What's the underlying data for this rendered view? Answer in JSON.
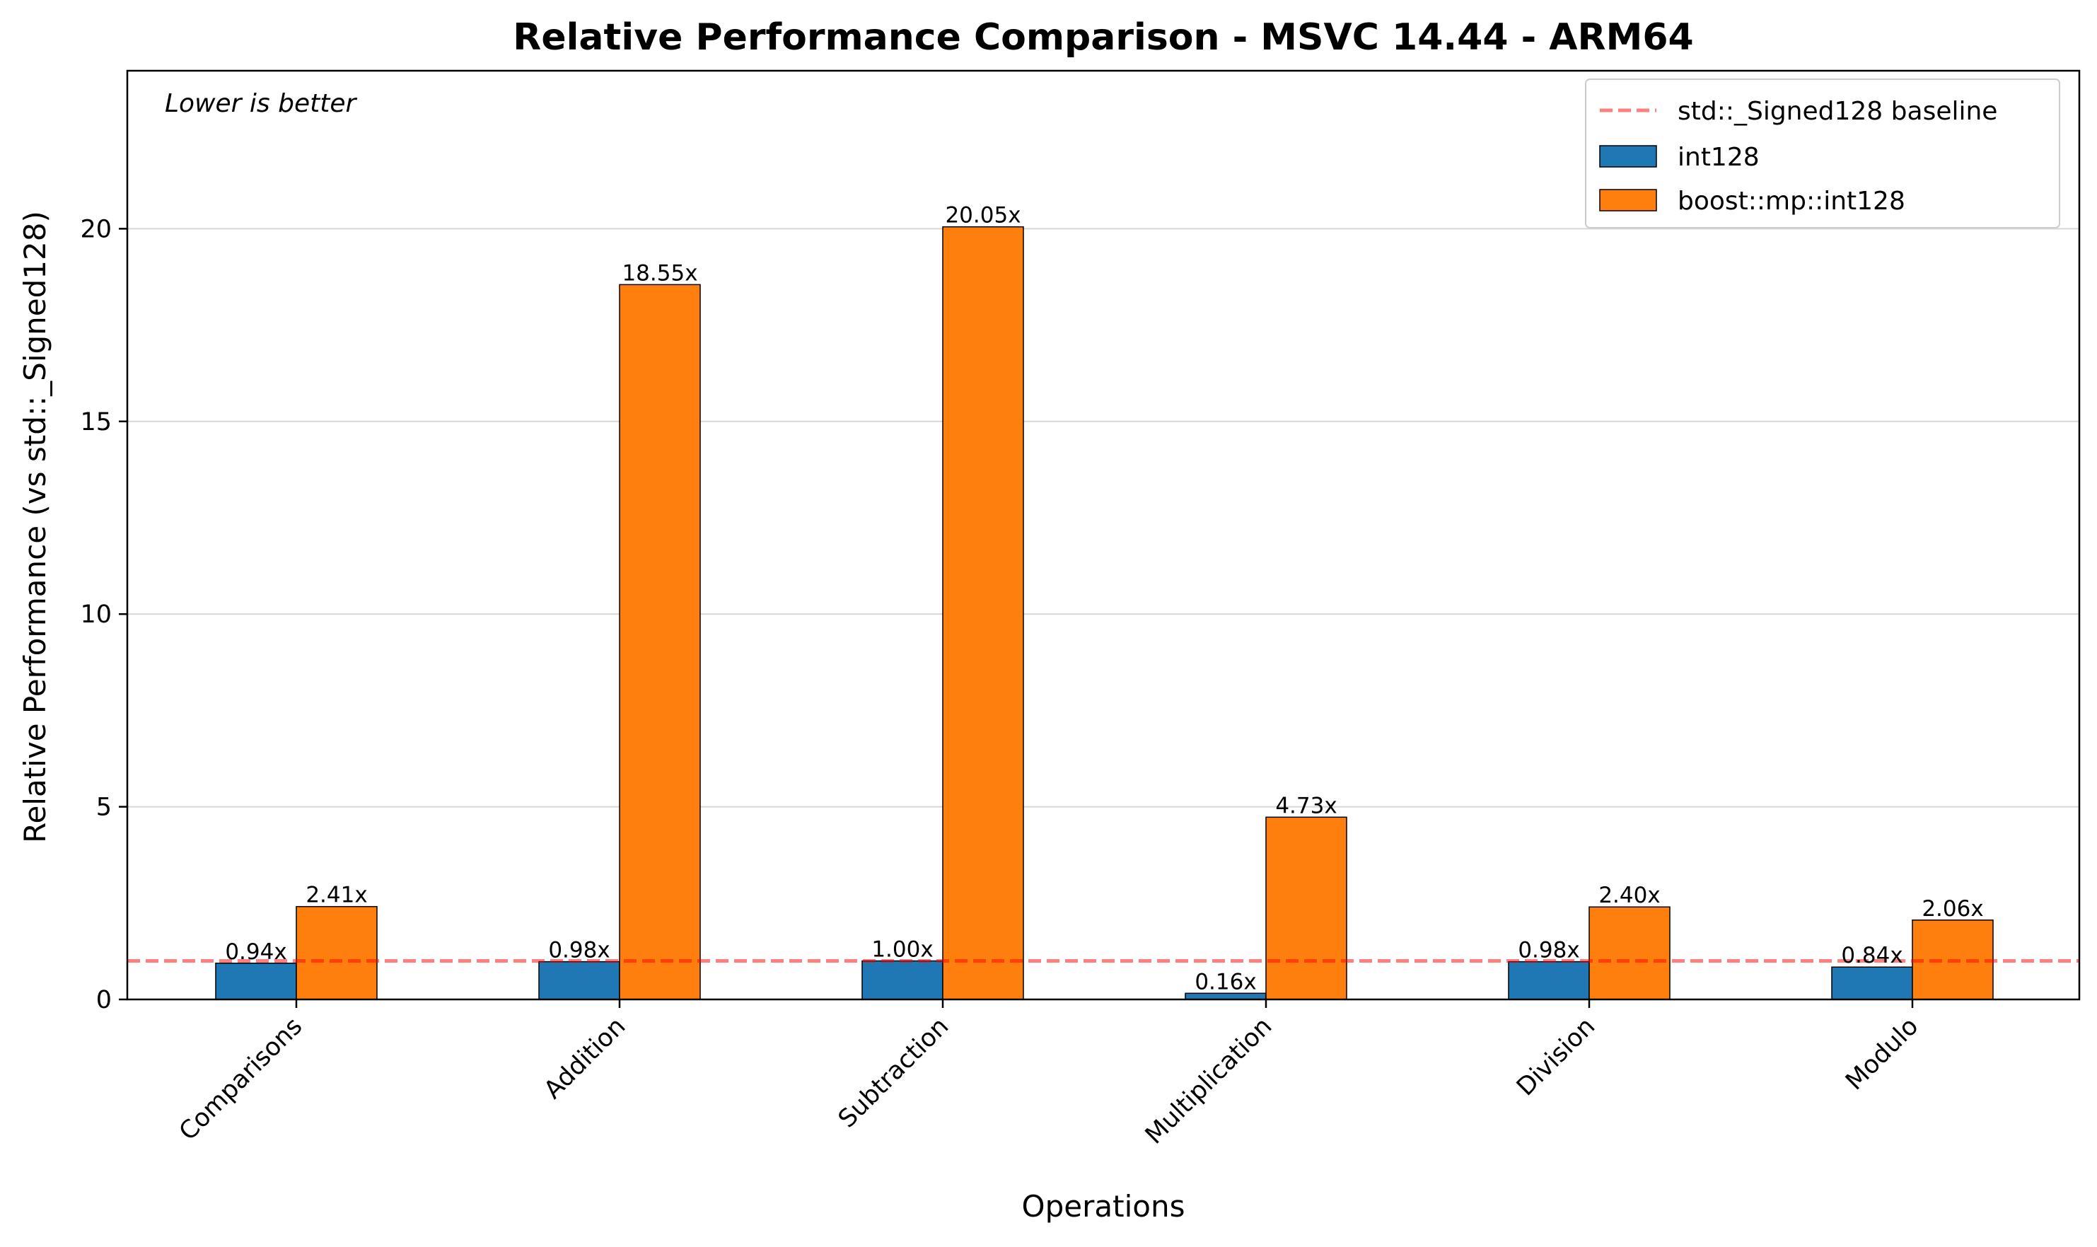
{
  "chart_data": {
    "type": "bar",
    "title": "Relative Performance Comparison - MSVC 14.44 - ARM64",
    "xlabel": "Operations",
    "ylabel": "Relative Performance (vs std::_Signed128)",
    "annotation": "Lower is better",
    "categories": [
      "Comparisons",
      "Addition",
      "Subtraction",
      "Multiplication",
      "Division",
      "Modulo"
    ],
    "series": [
      {
        "name": "int128",
        "color": "#1f77b4",
        "values": [
          0.94,
          0.98,
          1.0,
          0.16,
          0.98,
          0.84
        ],
        "labels": [
          "0.94x",
          "0.98x",
          "1.00x",
          "0.16x",
          "0.98x",
          "0.84x"
        ]
      },
      {
        "name": "boost::mp::int128",
        "color": "#ff7f0e",
        "values": [
          2.41,
          18.55,
          20.05,
          4.73,
          2.4,
          2.06
        ],
        "labels": [
          "2.41x",
          "18.55x",
          "20.05x",
          "4.73x",
          "2.40x",
          "2.06x"
        ]
      }
    ],
    "baseline": {
      "name": "std::_Signed128 baseline",
      "value": 1.0,
      "color": "#ff0000"
    },
    "ylim": [
      0,
      24.1
    ],
    "yticks": [
      0,
      5,
      10,
      15,
      20
    ],
    "ytick_labels": [
      "0",
      "5",
      "10",
      "15",
      "20"
    ],
    "grid": "y",
    "legend_position": "top-right"
  }
}
